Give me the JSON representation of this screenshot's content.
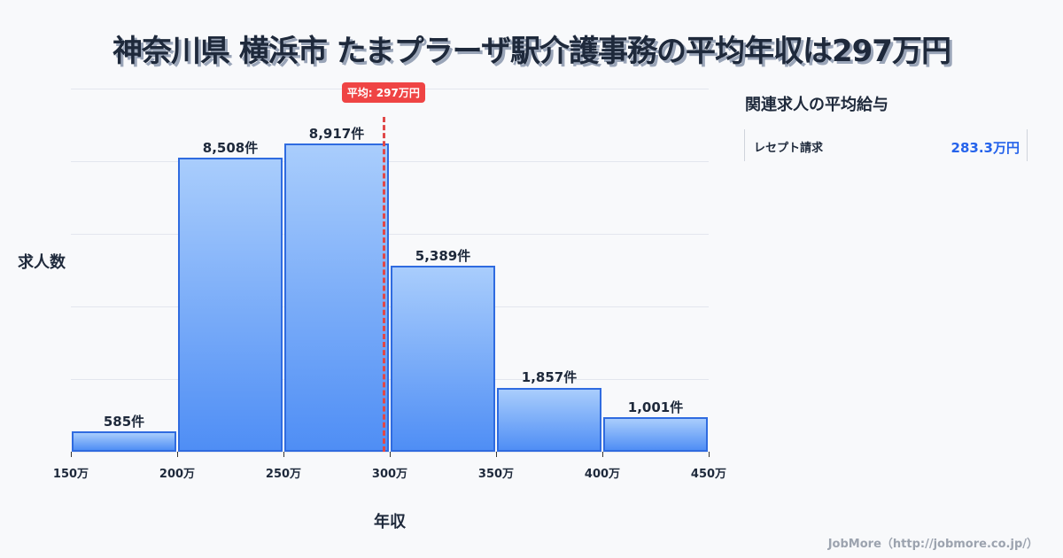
{
  "title": "神奈川県 横浜市 たまプラーザ駅介護事務の平均年収は297万円",
  "avg_badge": "平均: 297万円",
  "y_axis_label": "求人数",
  "x_axis_label": "年収",
  "sidebar": {
    "title": "関連求人の平均給与",
    "items": [
      {
        "name": "レセプト請求",
        "value": "283.3万円"
      }
    ]
  },
  "footer": "JobMore（http://jobmore.co.jp/）",
  "bar_labels": [
    "585件",
    "8,508件",
    "8,917件",
    "5,389件",
    "1,857件",
    "1,001件"
  ],
  "x_ticks": [
    "150万",
    "200万",
    "250万",
    "300万",
    "350万",
    "400万",
    "450万"
  ],
  "chart_data": {
    "type": "bar",
    "title": "神奈川県 横浜市 たまプラーザ駅介護事務の平均年収は297万円",
    "categories": [
      "150-200万",
      "200-250万",
      "250-300万",
      "300-350万",
      "350-400万",
      "400-450万"
    ],
    "values": [
      585,
      8508,
      8917,
      5389,
      1857,
      1001
    ],
    "xlabel": "年収",
    "ylabel": "求人数",
    "x_ticks": [
      "150万",
      "200万",
      "250万",
      "300万",
      "350万",
      "400万",
      "450万"
    ],
    "ylim": [
      0,
      10500
    ],
    "grid": true,
    "annotations": [
      {
        "type": "vline",
        "x": 297,
        "label": "平均: 297万円",
        "color": "#ef4444"
      }
    ],
    "colors": {
      "bar_fill_top": "#a9cdfc",
      "bar_fill_bottom": "#4f8ef5",
      "bar_border": "#2f6be0"
    }
  }
}
